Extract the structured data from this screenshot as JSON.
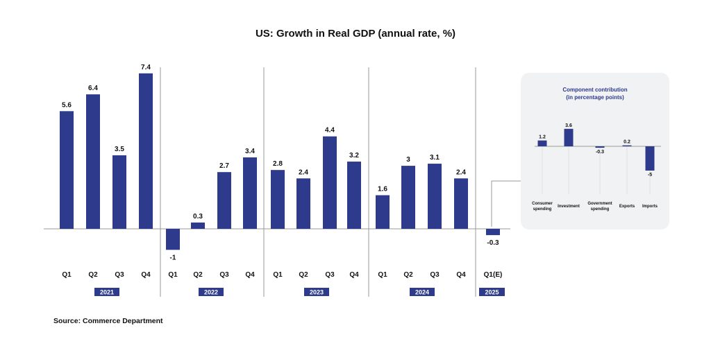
{
  "chart_data": [
    {
      "type": "bar",
      "title": "US: Growth in Real GDP (annual rate, %)",
      "xlabel": "",
      "ylabel": "",
      "groups": [
        {
          "year": "2021",
          "categories": [
            "Q1",
            "Q2",
            "Q3",
            "Q4"
          ],
          "values": [
            5.6,
            6.4,
            3.5,
            7.4
          ],
          "labels": [
            "5.6",
            "6.4",
            "3.5",
            "7.4"
          ]
        },
        {
          "year": "2022",
          "categories": [
            "Q1",
            "Q2",
            "Q3",
            "Q4"
          ],
          "values": [
            -1,
            0.3,
            2.7,
            3.4
          ],
          "labels": [
            "-1",
            "0.3",
            "2.7",
            "3.4"
          ]
        },
        {
          "year": "2023",
          "categories": [
            "Q1",
            "Q2",
            "Q3",
            "Q4"
          ],
          "values": [
            2.8,
            2.4,
            4.4,
            3.2
          ],
          "labels": [
            "2.8",
            "2.4",
            "4.4",
            "3.2"
          ]
        },
        {
          "year": "2024",
          "categories": [
            "Q1",
            "Q2",
            "Q3",
            "Q4"
          ],
          "values": [
            1.6,
            3,
            3.1,
            2.4
          ],
          "labels": [
            "1.6",
            "3",
            "3.1",
            "2.4"
          ]
        },
        {
          "year": "2025",
          "categories": [
            "Q1(E)"
          ],
          "values": [
            -0.3
          ],
          "labels": [
            "-0.3"
          ]
        }
      ],
      "ylim": [
        -1.5,
        7.5
      ],
      "grid": false,
      "legend": "none",
      "bar_color": "#2e3a8c",
      "source": "Source: Commerce Department"
    },
    {
      "type": "bar",
      "title": "Component contribution",
      "subtitle": "(in percentage points)",
      "categories": [
        [
          "Consumer",
          "spending"
        ],
        [
          "Investment"
        ],
        [
          "Government",
          "spending"
        ],
        [
          "Exports"
        ],
        [
          "Imports"
        ]
      ],
      "values": [
        1.2,
        3.6,
        -0.3,
        0.2,
        -5
      ],
      "labels": [
        "1.2",
        "3.6",
        "-0.3",
        "0.2",
        "-5"
      ],
      "ylim": [
        -5.5,
        4.5
      ],
      "grid": false,
      "legend": "none",
      "bar_color": "#2e3a8c",
      "panel_background": "#f1f2f4",
      "position": "right inset, linked to 2025 Q1(E)"
    }
  ]
}
